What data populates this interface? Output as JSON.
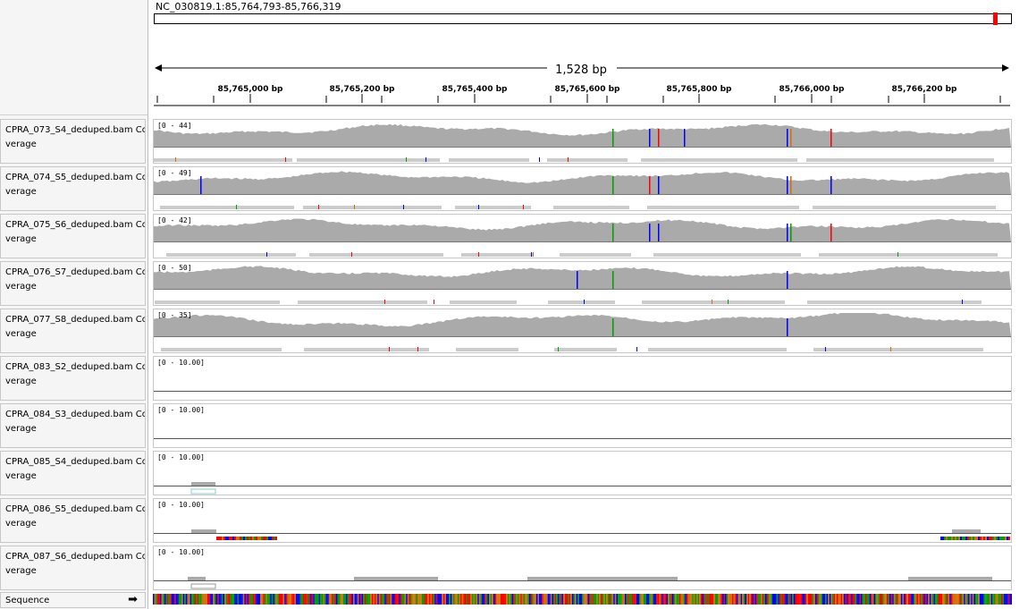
{
  "header": {
    "locus": "NC_030819.1:85,764,793-85,766,319",
    "span_label": "1,528 bp",
    "ruler_ticks": [
      "85,765,000 bp",
      "85,765,200 bp",
      "85,765,400 bp",
      "85,765,600 bp",
      "85,765,800 bp",
      "85,766,000 bp",
      "85,766,200 bp"
    ]
  },
  "tracks": [
    {
      "line1": "CPRA_073_S4_deduped.bam Co",
      "line2": "verage",
      "range": "[0 - 44]",
      "has_coverage": true
    },
    {
      "line1": "CPRA_074_S5_deduped.bam Co",
      "line2": "verage",
      "range": "[0 - 49]",
      "has_coverage": true
    },
    {
      "line1": "CPRA_075_S6_deduped.bam Co",
      "line2": "verage",
      "range": "[0 - 42]",
      "has_coverage": true
    },
    {
      "line1": "CPRA_076_S7_deduped.bam Co",
      "line2": "verage",
      "range": "[0 - 50]",
      "has_coverage": true
    },
    {
      "line1": "CPRA_077_S8_deduped.bam Co",
      "line2": "verage",
      "range": "[0 - 35]",
      "has_coverage": true
    },
    {
      "line1": "CPRA_083_S2_deduped.bam Co",
      "line2": "verage",
      "range": "[0 - 10.00]",
      "has_coverage": false
    },
    {
      "line1": "CPRA_084_S3_deduped.bam Co",
      "line2": "verage",
      "range": "[0 - 10.00]",
      "has_coverage": false
    },
    {
      "line1": "CPRA_085_S4_deduped.bam Co",
      "line2": "verage",
      "range": "[0 - 10.00]",
      "has_coverage": false
    },
    {
      "line1": "CPRA_086_S5_deduped.bam Co",
      "line2": "verage",
      "range": "[0 - 10.00]",
      "has_coverage": false
    },
    {
      "line1": "CPRA_087_S6_deduped.bam Co",
      "line2": "verage",
      "range": "[0 - 10.00]",
      "has_coverage": false
    }
  ],
  "sequence": {
    "label": "Sequence",
    "arrow": "➡"
  },
  "colors": {
    "coverage": "#aaaaaa",
    "A": "#00a000",
    "C": "#0000ff",
    "G": "#d17105",
    "T": "#ff0000"
  }
}
